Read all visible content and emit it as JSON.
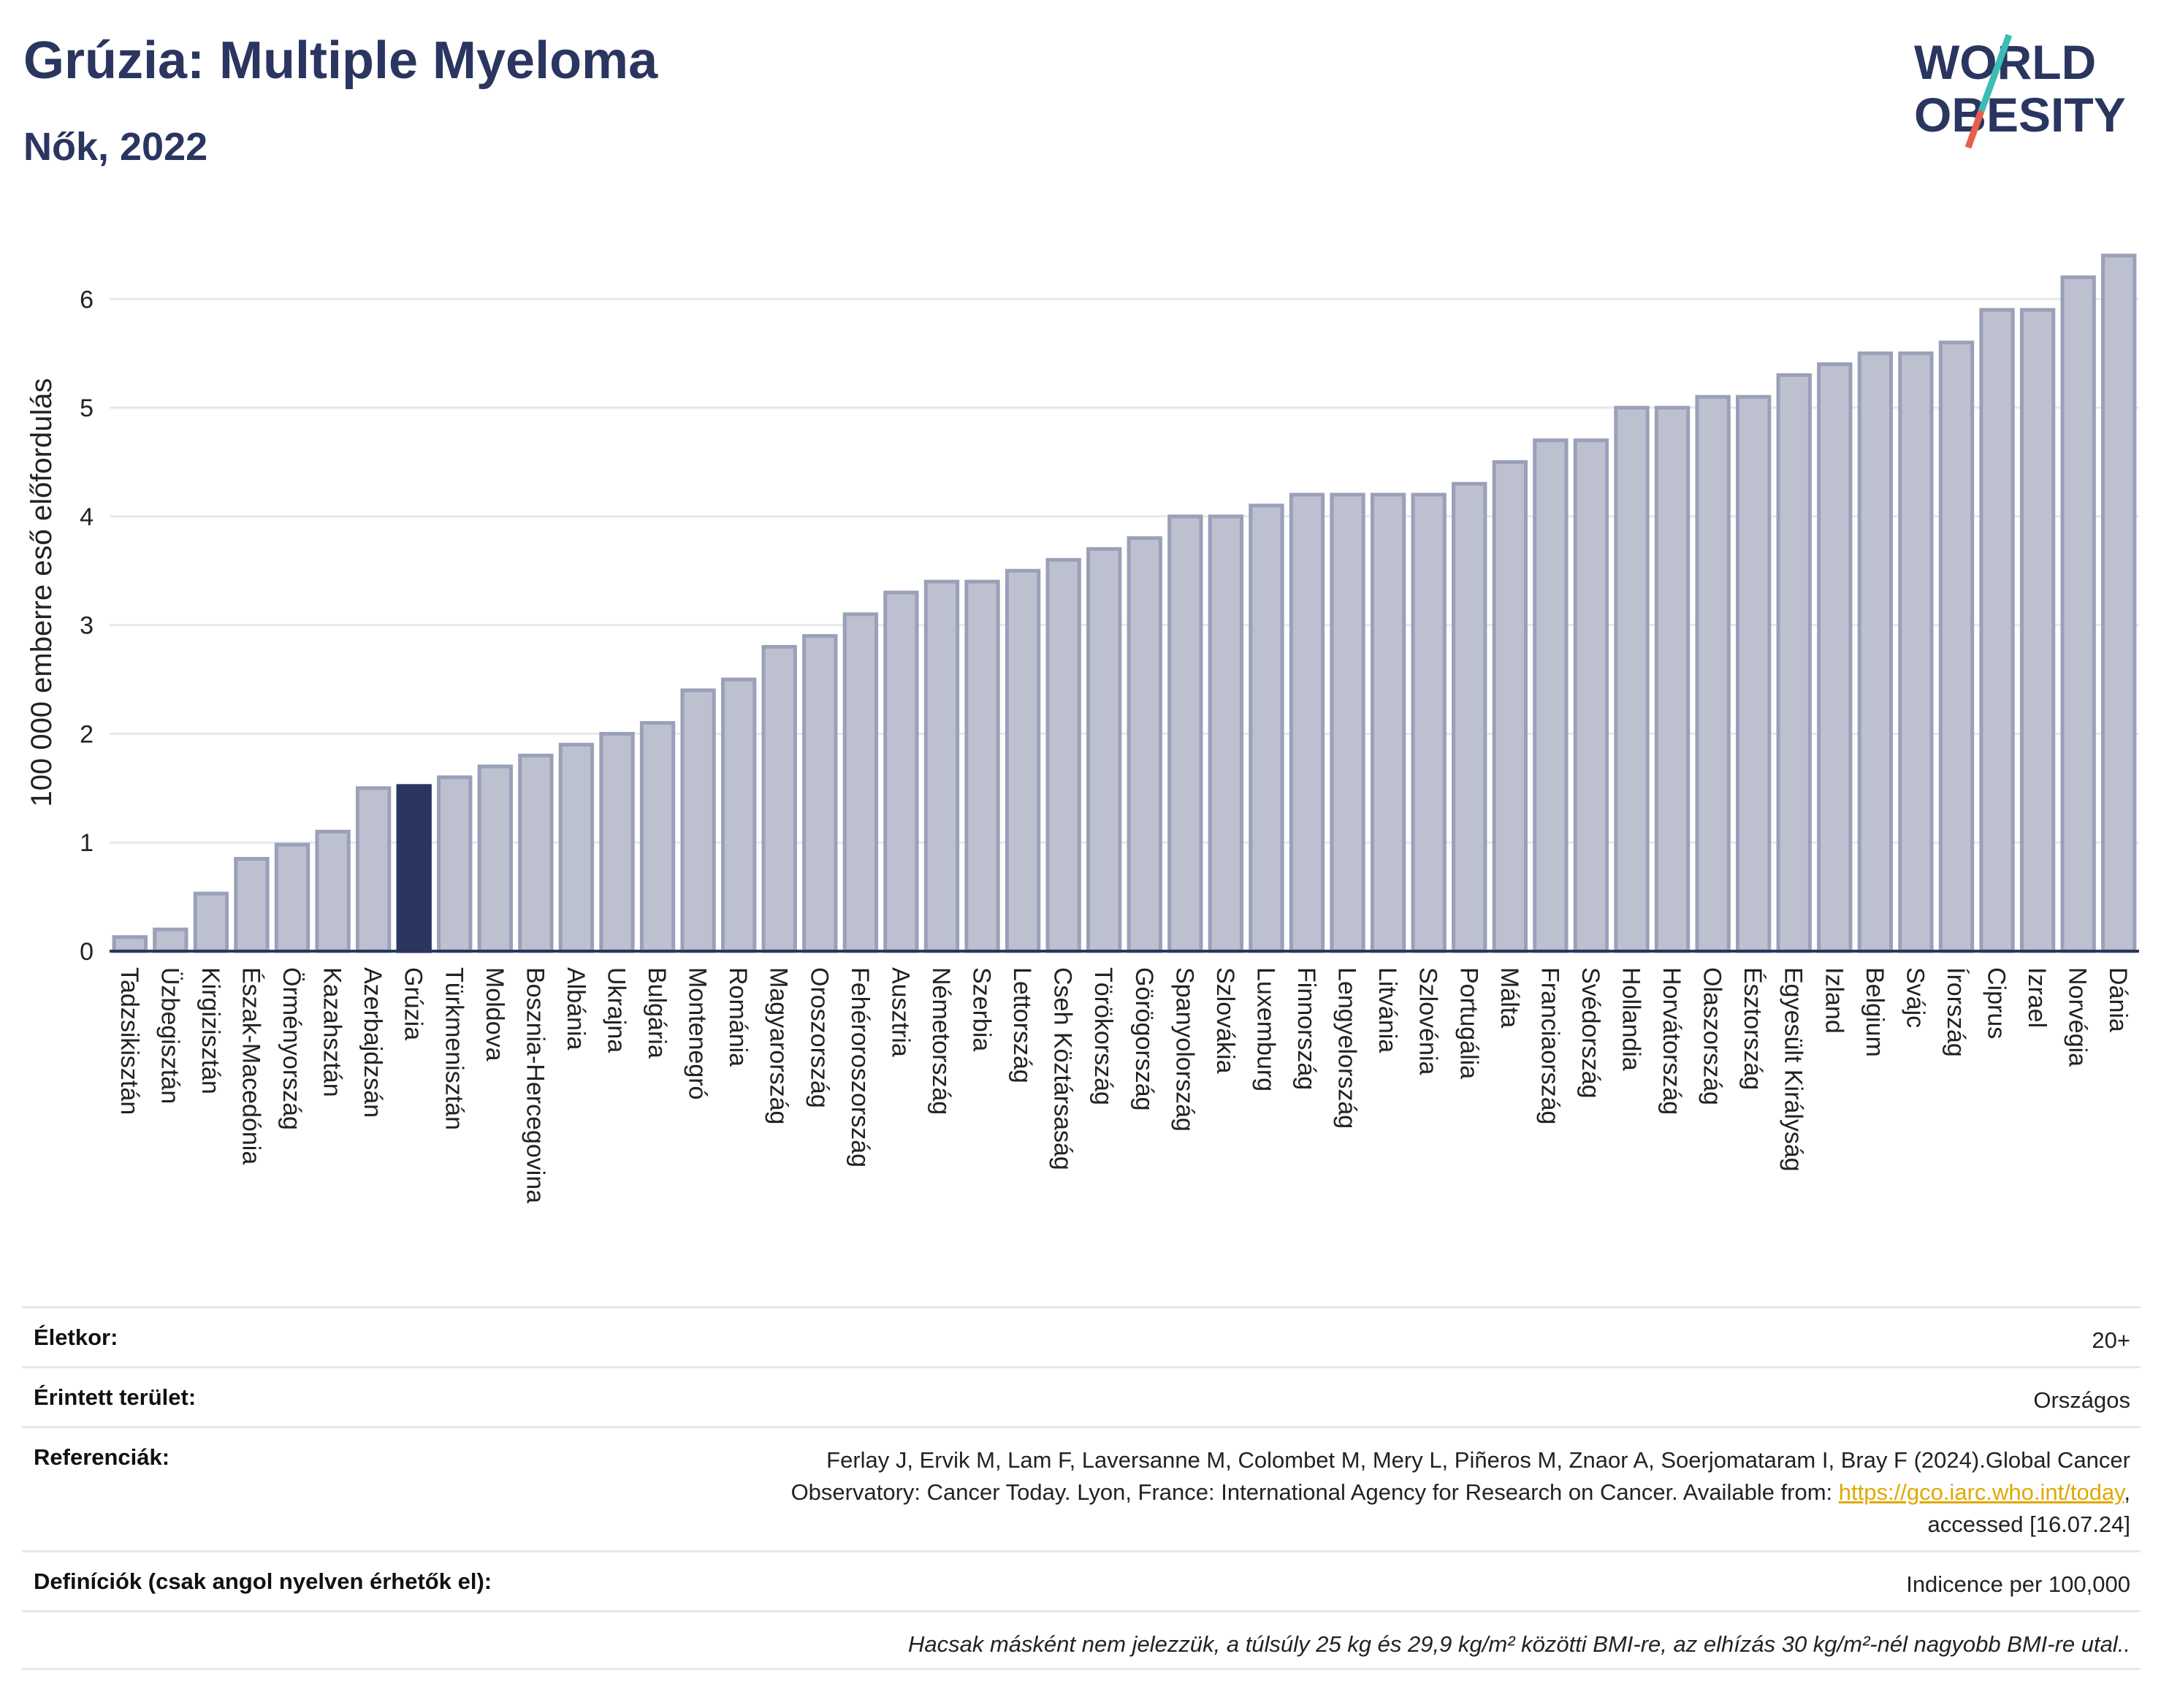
{
  "header": {
    "title": "Grúzia: Multiple Myeloma",
    "subtitle": "Nők, 2022"
  },
  "logo": {
    "line1": "WORLD",
    "line2": "OBESITY",
    "colors": {
      "text": "#2a3560",
      "slash_teal": "#3cbcb4",
      "slash_red": "#e8604c"
    }
  },
  "chart_data": {
    "type": "bar",
    "ylabel": "100 000 emberre eső előfordulás",
    "ylim": [
      0,
      6.6
    ],
    "yticks": [
      0,
      1,
      2,
      3,
      4,
      5,
      6
    ],
    "grid": true,
    "highlight": "Grúzia",
    "colors": {
      "bar": "#bcc0cf",
      "bar_edge": "#9aa0b8",
      "highlight": "#2a3560",
      "grid": "#e6e8ef",
      "axis": "#2a3560"
    },
    "categories": [
      "Tadzsikisztán",
      "Üzbegisztán",
      "Kirgizisztán",
      "Észak-Macedónia",
      "Örményország",
      "Kazahsztán",
      "Azerbajdzsán",
      "Grúzia",
      "Türkmenisztán",
      "Moldova",
      "Bosznia-Hercegovina",
      "Albánia",
      "Ukrajna",
      "Bulgária",
      "Montenegró",
      "Románia",
      "Magyarország",
      "Oroszország",
      "Fehéroroszország",
      "Ausztria",
      "Németország",
      "Szerbia",
      "Lettország",
      "Cseh Köztársaság",
      "Törökország",
      "Görögország",
      "Spanyolország",
      "Szlovákia",
      "Luxemburg",
      "Finnország",
      "Lengyelország",
      "Litvánia",
      "Szlovénia",
      "Portugália",
      "Málta",
      "Franciaország",
      "Svédország",
      "Hollandia",
      "Horvátország",
      "Olaszország",
      "Észtország",
      "Egyesült Királyság",
      "Izland",
      "Belgium",
      "Svájc",
      "Írország",
      "Ciprus",
      "Izrael",
      "Norvégia",
      "Dánia"
    ],
    "values": [
      0.13,
      0.2,
      0.53,
      0.85,
      0.98,
      1.1,
      1.5,
      1.52,
      1.6,
      1.7,
      1.8,
      1.9,
      2.0,
      2.1,
      2.4,
      2.5,
      2.8,
      2.9,
      3.1,
      3.3,
      3.4,
      3.4,
      3.5,
      3.6,
      3.7,
      3.8,
      4.0,
      4.0,
      4.1,
      4.2,
      4.2,
      4.2,
      4.2,
      4.3,
      4.5,
      4.7,
      4.7,
      5.0,
      5.0,
      5.1,
      5.1,
      5.3,
      5.4,
      5.5,
      5.5,
      5.6,
      5.9,
      5.9,
      6.2,
      6.4
    ]
  },
  "info": {
    "age_label": "Életkor:",
    "age_value": "20+",
    "area_label": "Érintett terület:",
    "area_value": "Országos",
    "ref_label": "Referenciák:",
    "ref_line1": "Ferlay J, Ervik M, Lam F, Laversanne M, Colombet M, Mery L, Piñeros M, Znaor A, Soerjomataram I, Bray F (2024).Global Cancer",
    "ref_line2_pre": "Observatory: Cancer Today. Lyon, France: International Agency for Research on Cancer. Available from: ",
    "ref_link": "https://gco.iarc.who.int/today",
    "ref_line2_post": ",",
    "ref_line3": "accessed [16.07.24]",
    "def_label": "Definíciók (csak angol nyelven érhetők el):",
    "def_value": "Indicence per 100,000",
    "footnote": "Hacsak másként nem jelezzük, a túlsúly 25 kg és 29,9 kg/m² közötti BMI-re, az elhízás 30 kg/m²-nél nagyobb BMI-re utal.."
  }
}
